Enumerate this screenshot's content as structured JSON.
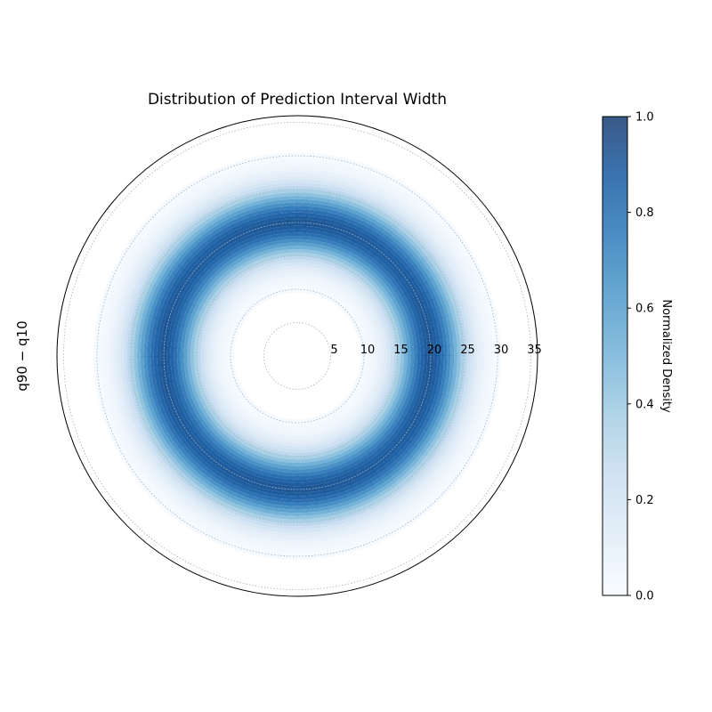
{
  "chart_data": {
    "type": "heatmap",
    "projection": "polar",
    "title": "Distribution of Prediction Interval Width",
    "ylabel": "q90 − q10",
    "radial_axis": {
      "range": [
        0,
        36
      ],
      "ticks": [
        5,
        10,
        15,
        20,
        25,
        30,
        35
      ],
      "grid": true
    },
    "density": {
      "peak_radius": 20,
      "inner_sigma": 3.5,
      "outer_sigma": 3.5,
      "angular_modulation": 0.15
    },
    "colorbar": {
      "label": "Normalized Density",
      "range": [
        0.0,
        1.0
      ],
      "ticks": [
        "0.0",
        "0.2",
        "0.4",
        "0.6",
        "0.8",
        "1.0"
      ],
      "colormap": "Blues",
      "colors": [
        "#f7fbff",
        "#deebf7",
        "#c6dbef",
        "#9ecae1",
        "#6baed6",
        "#4292c6",
        "#2171b5",
        "#08519c",
        "#08306b"
      ]
    }
  }
}
